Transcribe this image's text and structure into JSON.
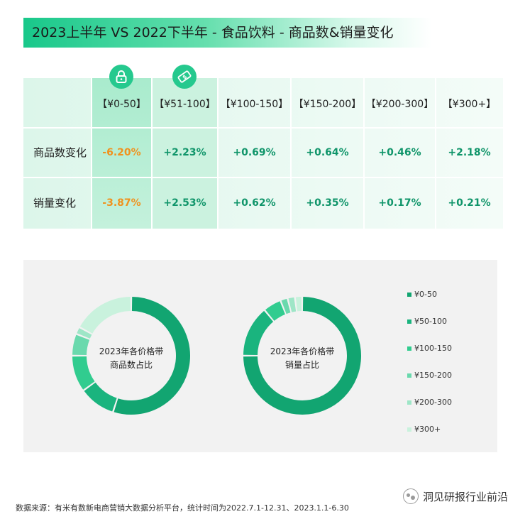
{
  "page": {
    "title": "2023上半年 VS 2022下半年 - 食品饮料 - 商品数&销量变化",
    "source": "数据来源：有米有数新电商营销大数据分析平台，统计时间为2022.7.1-12.31、2023.1.1-6.30",
    "brand": "洞见研报行业前沿",
    "lock_icon": "lock-icon",
    "money_icon": "money-icon"
  },
  "table": {
    "headers": [
      "【¥0-50】",
      "【¥51-100】",
      "【¥100-150】",
      "【¥150-200】",
      "【¥200-300】",
      "【¥300+】"
    ],
    "rows": [
      {
        "label": "商品数变化",
        "values": [
          "-6.20%",
          "+2.23%",
          "+0.69%",
          "+0.64%",
          "+0.46%",
          "+2.18%"
        ]
      },
      {
        "label": "销量变化",
        "values": [
          "-3.87%",
          "+2.53%",
          "+0.62%",
          "+0.35%",
          "+0.17%",
          "+0.21%"
        ]
      }
    ]
  },
  "chart_data": [
    {
      "type": "pie",
      "title": "2023年各价格带商品数占比",
      "categories": [
        "¥0-50",
        "¥50-100",
        "¥100-150",
        "¥150-200",
        "¥200-300",
        "¥300+"
      ],
      "values": [
        55,
        10,
        10,
        6,
        2,
        17
      ]
    },
    {
      "type": "pie",
      "title": "2023年各价格带销量占比",
      "categories": [
        "¥0-50",
        "¥50-100",
        "¥100-150",
        "¥150-200",
        "¥200-300",
        "¥300+"
      ],
      "values": [
        75,
        14,
        5,
        2,
        2,
        2
      ]
    }
  ],
  "legend": {
    "items": [
      "¥0-50",
      "¥50-100",
      "¥100-150",
      "¥150-200",
      "¥200-300",
      "¥300+"
    ],
    "colors": [
      "#12a571",
      "#1ab47e",
      "#31cc8f",
      "#6ad9ad",
      "#9ee6c7",
      "#c9f2dd"
    ]
  },
  "donut_labels": [
    {
      "line1": "2023年各价格带",
      "line2": "商品数占比"
    },
    {
      "line1": "2023年各价格带",
      "line2": "销量占比"
    }
  ]
}
